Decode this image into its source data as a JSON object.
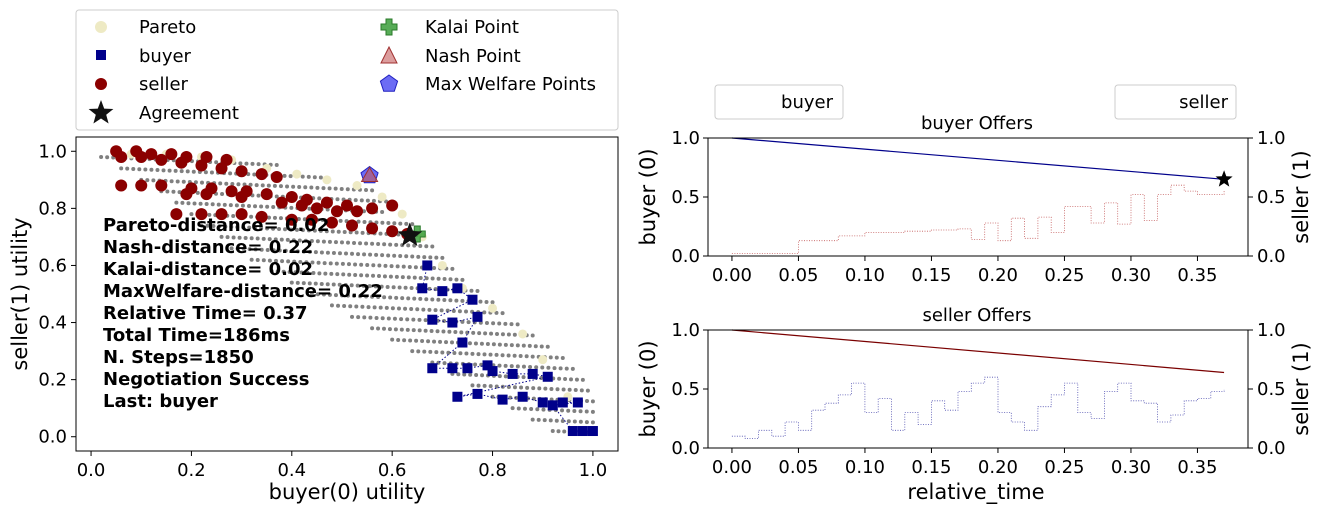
{
  "chart_data": [
    {
      "type": "scatter",
      "xlabel": "buyer(0) utility",
      "ylabel": "seller(1) utility",
      "xlim": [
        -0.03,
        1.05
      ],
      "ylim": [
        -0.05,
        1.05
      ],
      "xticks": [
        "0.0",
        "0.2",
        "0.4",
        "0.6",
        "0.8",
        "1.0"
      ],
      "yticks": [
        "0.0",
        "0.2",
        "0.4",
        "0.6",
        "0.8",
        "1.0"
      ],
      "legend": {
        "placement": "above",
        "entries": [
          "Pareto",
          "buyer",
          "seller",
          "Agreement",
          "Kalai Point",
          "Nash Point",
          "Max Welfare Points"
        ]
      },
      "colors": {
        "pareto": "#eeeac4",
        "buyer": "#00008b",
        "seller": "#8b0000",
        "agreement": "#111111",
        "kalai": "#3a9e3a",
        "nash": "#c45c5c",
        "max_welfare": "#3b3bf0",
        "outcomes": "#808080"
      },
      "pareto": [
        [
          0.08,
          0.99
        ],
        [
          0.15,
          0.99
        ],
        [
          0.22,
          0.98
        ],
        [
          0.28,
          0.97
        ],
        [
          0.35,
          0.94
        ],
        [
          0.41,
          0.92
        ],
        [
          0.47,
          0.9
        ],
        [
          0.53,
          0.88
        ],
        [
          0.58,
          0.84
        ],
        [
          0.62,
          0.78
        ],
        [
          0.66,
          0.7
        ],
        [
          0.7,
          0.6
        ],
        [
          0.74,
          0.52
        ],
        [
          0.8,
          0.45
        ],
        [
          0.86,
          0.36
        ],
        [
          0.9,
          0.27
        ],
        [
          0.95,
          0.14
        ],
        [
          1.0,
          0.02
        ]
      ],
      "outcome_rows": [
        [
          0.02,
          0.37,
          0.98
        ],
        [
          0.06,
          0.47,
          0.94
        ],
        [
          0.1,
          0.56,
          0.9
        ],
        [
          0.14,
          0.6,
          0.86
        ],
        [
          0.17,
          0.58,
          0.82
        ],
        [
          0.2,
          0.64,
          0.78
        ],
        [
          0.22,
          0.66,
          0.74
        ],
        [
          0.26,
          0.68,
          0.7
        ],
        [
          0.28,
          0.7,
          0.66
        ],
        [
          0.32,
          0.72,
          0.62
        ],
        [
          0.36,
          0.74,
          0.58
        ],
        [
          0.4,
          0.77,
          0.54
        ],
        [
          0.44,
          0.8,
          0.5
        ],
        [
          0.48,
          0.82,
          0.46
        ],
        [
          0.52,
          0.85,
          0.42
        ],
        [
          0.56,
          0.88,
          0.38
        ],
        [
          0.6,
          0.91,
          0.34
        ],
        [
          0.64,
          0.94,
          0.3
        ],
        [
          0.68,
          0.96,
          0.26
        ],
        [
          0.72,
          0.98,
          0.22
        ],
        [
          0.76,
          0.99,
          0.18
        ],
        [
          0.8,
          1.0,
          0.14
        ],
        [
          0.84,
          1.0,
          0.1
        ],
        [
          0.88,
          1.0,
          0.06
        ],
        [
          0.92,
          1.0,
          0.02
        ]
      ],
      "seller_offers": [
        [
          0.05,
          1.0
        ],
        [
          0.09,
          1.0
        ],
        [
          0.12,
          0.99
        ],
        [
          0.16,
          0.99
        ],
        [
          0.19,
          0.98
        ],
        [
          0.23,
          0.98
        ],
        [
          0.27,
          0.97
        ],
        [
          0.06,
          0.98
        ],
        [
          0.1,
          0.98
        ],
        [
          0.14,
          0.97
        ],
        [
          0.18,
          0.96
        ],
        [
          0.22,
          0.95
        ],
        [
          0.26,
          0.94
        ],
        [
          0.3,
          0.93
        ],
        [
          0.34,
          0.92
        ],
        [
          0.37,
          0.91
        ],
        [
          0.06,
          0.88
        ],
        [
          0.1,
          0.88
        ],
        [
          0.14,
          0.88
        ],
        [
          0.2,
          0.87
        ],
        [
          0.24,
          0.87
        ],
        [
          0.28,
          0.86
        ],
        [
          0.31,
          0.86
        ],
        [
          0.35,
          0.85
        ],
        [
          0.4,
          0.84
        ],
        [
          0.43,
          0.83
        ],
        [
          0.47,
          0.82
        ],
        [
          0.51,
          0.81
        ],
        [
          0.19,
          0.85
        ],
        [
          0.23,
          0.85
        ],
        [
          0.3,
          0.84
        ],
        [
          0.38,
          0.82
        ],
        [
          0.42,
          0.81
        ],
        [
          0.45,
          0.8
        ],
        [
          0.49,
          0.79
        ],
        [
          0.53,
          0.79
        ],
        [
          0.56,
          0.8
        ],
        [
          0.6,
          0.81
        ],
        [
          0.17,
          0.78
        ],
        [
          0.22,
          0.78
        ],
        [
          0.26,
          0.78
        ],
        [
          0.3,
          0.78
        ],
        [
          0.34,
          0.77
        ],
        [
          0.4,
          0.76
        ],
        [
          0.44,
          0.76
        ],
        [
          0.48,
          0.75
        ],
        [
          0.52,
          0.74
        ],
        [
          0.56,
          0.73
        ],
        [
          0.6,
          0.72
        ],
        [
          0.63,
          0.71
        ]
      ],
      "buyer_offers": [
        [
          0.67,
          0.6
        ],
        [
          0.66,
          0.52
        ],
        [
          0.7,
          0.51
        ],
        [
          0.73,
          0.52
        ],
        [
          0.76,
          0.48
        ],
        [
          0.68,
          0.41
        ],
        [
          0.72,
          0.4
        ],
        [
          0.77,
          0.42
        ],
        [
          0.74,
          0.33
        ],
        [
          0.68,
          0.24
        ],
        [
          0.72,
          0.24
        ],
        [
          0.75,
          0.24
        ],
        [
          0.79,
          0.25
        ],
        [
          0.8,
          0.23
        ],
        [
          0.84,
          0.22
        ],
        [
          0.88,
          0.22
        ],
        [
          0.91,
          0.21
        ],
        [
          0.73,
          0.14
        ],
        [
          0.77,
          0.15
        ],
        [
          0.82,
          0.13
        ],
        [
          0.86,
          0.14
        ],
        [
          0.9,
          0.12
        ],
        [
          0.94,
          0.12
        ],
        [
          0.97,
          0.12
        ],
        [
          0.92,
          0.11
        ],
        [
          0.96,
          0.02
        ],
        [
          0.98,
          0.02
        ],
        [
          1.0,
          0.02
        ]
      ],
      "agreement": [
        0.635,
        0.705
      ],
      "kalai": [
        0.65,
        0.71
      ],
      "nash": [
        0.555,
        0.915
      ],
      "max_welfare": [
        0.555,
        0.915
      ],
      "annotation_lines": [
        "Pareto-distance= 0.02",
        "Nash-distance= 0.22",
        "Kalai-distance= 0.02",
        "MaxWelfare-distance= 0.22",
        "Relative Time= 0.37",
        "Total Time=186ms",
        "N. Steps=1850",
        "Negotiation Success",
        "Last: buyer"
      ]
    },
    {
      "type": "line",
      "title": "buyer Offers",
      "xlabel": "",
      "ylabel": "buyer (0)",
      "ylabel_right": "seller (1)",
      "xlim": [
        -0.018,
        0.388
      ],
      "ylim": [
        0,
        1
      ],
      "xticks": [
        "0.00",
        "0.05",
        "0.10",
        "0.15",
        "0.20",
        "0.25",
        "0.30",
        "0.35"
      ],
      "yticks": [
        "0.0",
        "0.5",
        "1.0"
      ],
      "legend": {
        "placement": "top",
        "entries": [
          "buyer",
          "seller"
        ]
      },
      "series": [
        {
          "name": "buyer",
          "color": "#00008b",
          "x": [
            0.0,
            0.37
          ],
          "y": [
            1.0,
            0.65
          ]
        },
        {
          "name": "seller",
          "color": "#c45c5c",
          "step_x": [
            0.0,
            0.05,
            0.08,
            0.1,
            0.13,
            0.15,
            0.17,
            0.18,
            0.19,
            0.2,
            0.21,
            0.22,
            0.23,
            0.24,
            0.25,
            0.26,
            0.27,
            0.28,
            0.29,
            0.3,
            0.31,
            0.32,
            0.33,
            0.34,
            0.35,
            0.36,
            0.37
          ],
          "step_y": [
            0.02,
            0.13,
            0.17,
            0.2,
            0.21,
            0.22,
            0.23,
            0.14,
            0.28,
            0.13,
            0.32,
            0.15,
            0.33,
            0.2,
            0.42,
            0.42,
            0.28,
            0.45,
            0.27,
            0.52,
            0.3,
            0.52,
            0.6,
            0.55,
            0.52,
            0.52,
            0.55
          ]
        }
      ],
      "agreement": [
        0.37,
        0.65
      ]
    },
    {
      "type": "line",
      "title": "seller Offers",
      "xlabel": "relative_time",
      "ylabel": "buyer (0)",
      "ylabel_right": "seller (1)",
      "xlim": [
        -0.018,
        0.388
      ],
      "ylim": [
        0,
        1
      ],
      "xticks": [
        "0.00",
        "0.05",
        "0.10",
        "0.15",
        "0.20",
        "0.25",
        "0.30",
        "0.35"
      ],
      "yticks": [
        "0.0",
        "0.5",
        "1.0"
      ],
      "series": [
        {
          "name": "seller",
          "color": "#7a0000",
          "x": [
            0.0,
            0.37
          ],
          "y": [
            1.0,
            0.64
          ]
        },
        {
          "name": "buyer",
          "color": "#4f4fb0",
          "step_x": [
            0.0,
            0.01,
            0.02,
            0.03,
            0.04,
            0.05,
            0.06,
            0.07,
            0.08,
            0.09,
            0.1,
            0.11,
            0.12,
            0.13,
            0.14,
            0.15,
            0.16,
            0.17,
            0.18,
            0.19,
            0.2,
            0.21,
            0.22,
            0.23,
            0.24,
            0.25,
            0.26,
            0.27,
            0.28,
            0.29,
            0.3,
            0.31,
            0.32,
            0.33,
            0.34,
            0.35,
            0.36,
            0.37
          ],
          "step_y": [
            0.1,
            0.08,
            0.15,
            0.1,
            0.22,
            0.15,
            0.32,
            0.38,
            0.45,
            0.55,
            0.3,
            0.42,
            0.15,
            0.3,
            0.2,
            0.4,
            0.32,
            0.48,
            0.55,
            0.6,
            0.3,
            0.22,
            0.15,
            0.35,
            0.45,
            0.55,
            0.3,
            0.25,
            0.48,
            0.55,
            0.4,
            0.38,
            0.22,
            0.28,
            0.4,
            0.42,
            0.48,
            0.5
          ]
        }
      ]
    }
  ]
}
